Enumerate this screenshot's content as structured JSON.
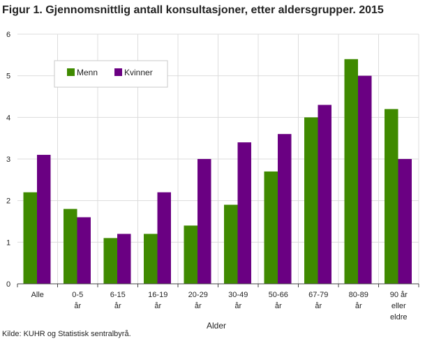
{
  "chart_data": {
    "type": "bar",
    "title": "Figur 1. Gjennomsnittlig antall konsultasjoner, etter aldersgrupper. 2015",
    "xlabel": "Alder",
    "ylabel": "",
    "ylim": [
      0,
      6
    ],
    "yticks": [
      "0",
      "1",
      "2",
      "3",
      "4",
      "5",
      "6"
    ],
    "grid": true,
    "legend_position": "top-left",
    "categories": [
      [
        "Alle"
      ],
      [
        "0-5",
        "år"
      ],
      [
        "6-15",
        "år"
      ],
      [
        "16-19",
        "år"
      ],
      [
        "20-29",
        "år"
      ],
      [
        "30-49",
        "år"
      ],
      [
        "50-66",
        "år"
      ],
      [
        "67-79",
        "år"
      ],
      [
        "80-89",
        "år"
      ],
      [
        "90 år",
        "eller",
        "eldre"
      ]
    ],
    "series": [
      {
        "name": "Menn",
        "color": "#3f8a00",
        "values": [
          2.2,
          1.8,
          1.1,
          1.2,
          1.4,
          1.9,
          2.7,
          4.0,
          5.4,
          4.2
        ]
      },
      {
        "name": "Kvinner",
        "color": "#6a0082",
        "values": [
          3.1,
          1.6,
          1.2,
          2.2,
          3.0,
          3.4,
          3.6,
          4.3,
          5.0,
          3.0
        ]
      }
    ],
    "source": "Kilde: KUHR og Statistisk sentralbyrå."
  }
}
